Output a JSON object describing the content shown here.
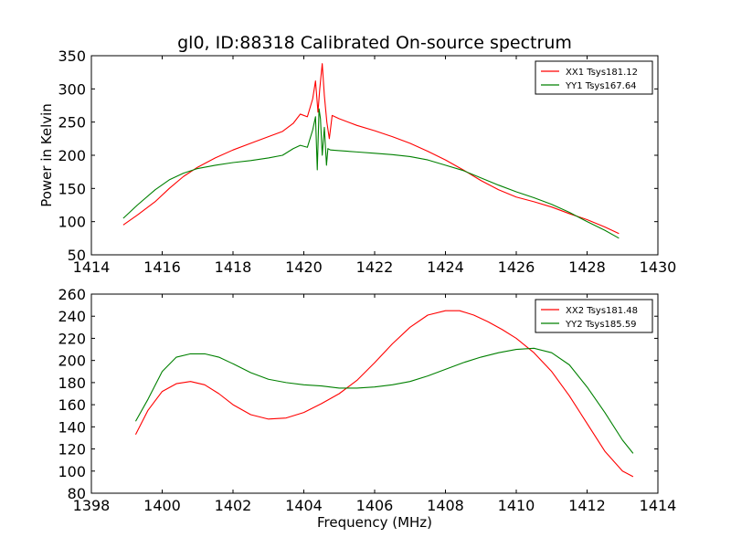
{
  "chart_data": [
    {
      "type": "line",
      "title": "gl0, ID:88318 Calibrated On-source spectrum",
      "xlabel": "",
      "ylabel": "Power in Kelvin",
      "xlim": [
        1414,
        1430
      ],
      "ylim": [
        50,
        350
      ],
      "xticks": [
        1414,
        1416,
        1418,
        1420,
        1422,
        1424,
        1426,
        1428,
        1430
      ],
      "yticks": [
        50,
        100,
        150,
        200,
        250,
        300,
        350
      ],
      "grid": false,
      "legend_position": "top-right",
      "series": [
        {
          "name": "XX1 Tsys181.12",
          "color": "#ff0000",
          "x": [
            1414.9,
            1415.3,
            1415.8,
            1416.2,
            1416.6,
            1417.0,
            1417.5,
            1418.0,
            1418.5,
            1419.0,
            1419.4,
            1419.7,
            1419.9,
            1420.1,
            1420.25,
            1420.33,
            1420.4,
            1420.45,
            1420.52,
            1420.58,
            1420.65,
            1420.72,
            1420.8,
            1421.0,
            1421.5,
            1422.0,
            1422.5,
            1423.0,
            1423.5,
            1424.0,
            1424.5,
            1425.0,
            1425.5,
            1426.0,
            1426.5,
            1427.0,
            1427.5,
            1428.0,
            1428.5,
            1428.9
          ],
          "y": [
            95,
            110,
            130,
            150,
            168,
            182,
            196,
            208,
            218,
            228,
            236,
            248,
            262,
            258,
            285,
            312,
            265,
            300,
            338,
            290,
            250,
            225,
            260,
            255,
            245,
            237,
            228,
            218,
            206,
            193,
            178,
            162,
            148,
            137,
            130,
            122,
            112,
            103,
            92,
            82
          ]
        },
        {
          "name": "YY1 Tsys167.64",
          "color": "#008000",
          "x": [
            1414.9,
            1415.3,
            1415.8,
            1416.2,
            1416.6,
            1417.0,
            1417.5,
            1418.0,
            1418.5,
            1419.0,
            1419.4,
            1419.7,
            1419.9,
            1420.1,
            1420.25,
            1420.33,
            1420.38,
            1420.43,
            1420.47,
            1420.52,
            1420.58,
            1420.64,
            1420.68,
            1420.75,
            1421.0,
            1421.5,
            1422.0,
            1422.5,
            1423.0,
            1423.5,
            1424.0,
            1424.5,
            1425.0,
            1425.5,
            1426.0,
            1426.5,
            1427.0,
            1427.5,
            1428.0,
            1428.5,
            1428.9
          ],
          "y": [
            105,
            125,
            148,
            163,
            173,
            180,
            185,
            189,
            192,
            196,
            200,
            210,
            215,
            212,
            238,
            258,
            178,
            270,
            255,
            200,
            242,
            185,
            210,
            208,
            207,
            205,
            203,
            201,
            198,
            193,
            185,
            177,
            166,
            155,
            145,
            136,
            126,
            114,
            100,
            87,
            75
          ]
        }
      ]
    },
    {
      "type": "line",
      "title": "",
      "xlabel": "Frequency (MHz)",
      "ylabel": "",
      "xlim": [
        1398,
        1414
      ],
      "ylim": [
        80,
        260
      ],
      "xticks": [
        1398,
        1400,
        1402,
        1404,
        1406,
        1408,
        1410,
        1412,
        1414
      ],
      "yticks": [
        80,
        100,
        120,
        140,
        160,
        180,
        200,
        220,
        240,
        260
      ],
      "grid": false,
      "legend_position": "top-right",
      "series": [
        {
          "name": "XX2 Tsys181.48",
          "color": "#ff0000",
          "x": [
            1399.25,
            1399.6,
            1400.0,
            1400.4,
            1400.8,
            1401.2,
            1401.6,
            1402.0,
            1402.5,
            1403.0,
            1403.5,
            1404.0,
            1404.5,
            1405.0,
            1405.5,
            1406.0,
            1406.5,
            1407.0,
            1407.5,
            1408.0,
            1408.4,
            1408.8,
            1409.2,
            1409.6,
            1410.0,
            1410.5,
            1411.0,
            1411.5,
            1412.0,
            1412.5,
            1413.0,
            1413.3
          ],
          "y": [
            133,
            155,
            172,
            179,
            181,
            178,
            170,
            160,
            151,
            147,
            148,
            153,
            161,
            170,
            182,
            198,
            215,
            230,
            241,
            245,
            245,
            241,
            235,
            228,
            220,
            207,
            190,
            168,
            143,
            118,
            100,
            95
          ]
        },
        {
          "name": "YY2 Tsys185.59",
          "color": "#008000",
          "x": [
            1399.25,
            1399.6,
            1400.0,
            1400.4,
            1400.8,
            1401.2,
            1401.6,
            1402.0,
            1402.5,
            1403.0,
            1403.5,
            1404.0,
            1404.5,
            1405.0,
            1405.5,
            1406.0,
            1406.5,
            1407.0,
            1407.5,
            1408.0,
            1408.5,
            1409.0,
            1409.5,
            1410.0,
            1410.5,
            1411.0,
            1411.5,
            1412.0,
            1412.5,
            1413.0,
            1413.3
          ],
          "y": [
            145,
            165,
            190,
            203,
            206,
            206,
            203,
            197,
            189,
            183,
            180,
            178,
            177,
            175,
            175,
            176,
            178,
            181,
            186,
            192,
            198,
            203,
            207,
            210,
            211,
            207,
            196,
            176,
            153,
            128,
            116
          ]
        }
      ]
    }
  ]
}
